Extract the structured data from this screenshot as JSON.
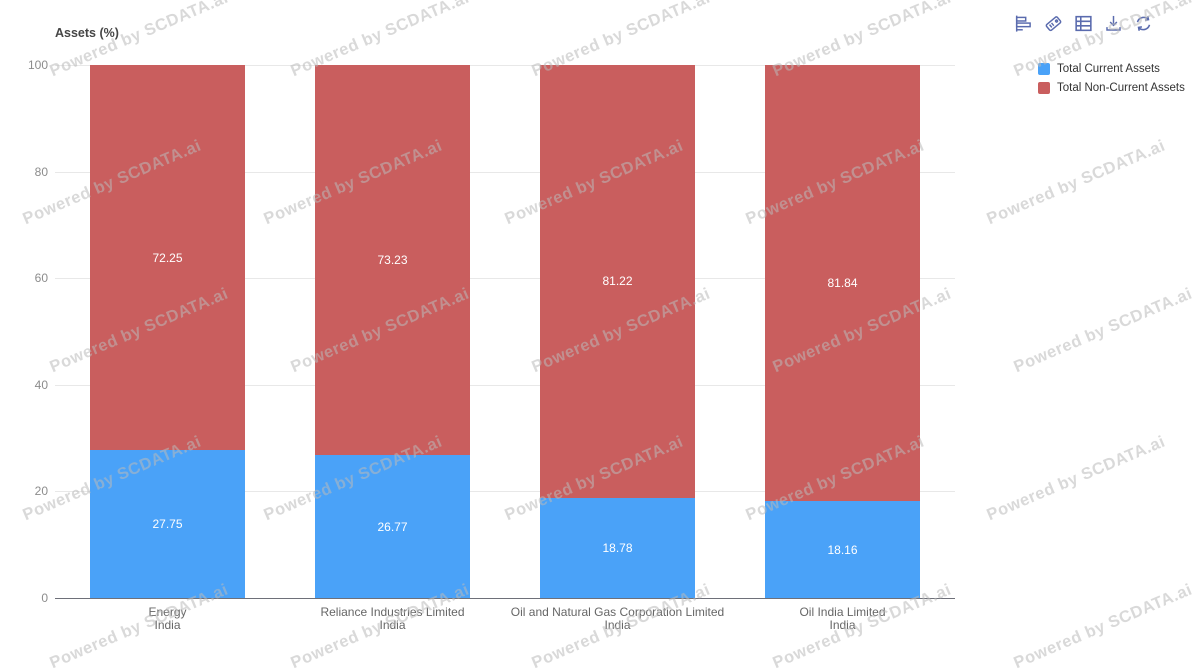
{
  "watermark": {
    "text": "Powered by SCDATA.ai",
    "color": "rgba(185,185,185,0.55)"
  },
  "toolbar": {
    "buttons": [
      {
        "name": "toggle-bar-chart",
        "icon": "bar-chart-icon"
      },
      {
        "name": "toggle-stack",
        "icon": "stack-tag-icon"
      },
      {
        "name": "data-view",
        "icon": "data-view-table-icon"
      },
      {
        "name": "save-as-image",
        "icon": "download-icon"
      },
      {
        "name": "restore",
        "icon": "refresh-icon"
      }
    ],
    "icon_color": "#5A6BAE"
  },
  "legend": {
    "position": "top-right",
    "items": [
      "Total Current Assets",
      "Total Non-Current Assets"
    ]
  },
  "colors": {
    "background": "#ffffff",
    "series_current": "#4aa2f8",
    "series_non_current": "#c95e5e",
    "gridline": "#e8e8e8",
    "axis_line": "#6E7079",
    "y_tick_label": "#8c8c8c",
    "category_label": "#666666",
    "value_label": "#ffffff",
    "legend_text": "#333333",
    "title_text": "#464646"
  },
  "chart_data": {
    "type": "bar",
    "stacked": true,
    "title": "Assets (%)",
    "categories": [
      [
        "Energy",
        "India"
      ],
      [
        "Reliance Industries Limited",
        "India"
      ],
      [
        "Oil and Natural Gas Corporation Limited",
        "India"
      ],
      [
        "Oil India Limited",
        "India"
      ]
    ],
    "series": [
      {
        "name": "Total Current Assets",
        "color": "#4aa2f8",
        "values": [
          27.75,
          26.77,
          18.78,
          18.16
        ]
      },
      {
        "name": "Total Non-Current Assets",
        "color": "#c95e5e",
        "values": [
          72.25,
          73.23,
          81.22,
          81.84
        ]
      }
    ],
    "xlabel": "",
    "ylabel": "Assets (%)",
    "ylim": [
      0,
      100
    ],
    "yticks": [
      0,
      20,
      40,
      60,
      80,
      100
    ],
    "grid": true,
    "legend_position": "top-right",
    "value_labels": true
  }
}
